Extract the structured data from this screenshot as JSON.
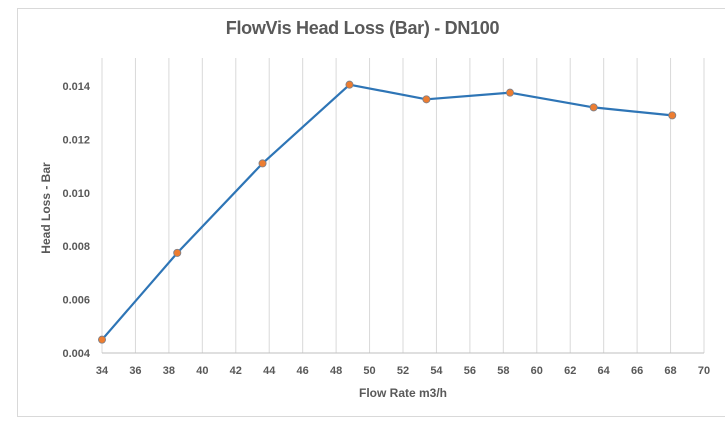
{
  "chart_data": {
    "type": "line",
    "title": "FlowVis Head Loss  (Bar) - DN100",
    "xlabel": "Flow Rate  m3/h",
    "ylabel": "Head Loss - Bar",
    "xlim": [
      34,
      70
    ],
    "ylim": [
      0.004,
      0.0151
    ],
    "x_ticks": [
      "34",
      "36",
      "38",
      "40",
      "42",
      "44",
      "46",
      "48",
      "50",
      "52",
      "54",
      "56",
      "58",
      "60",
      "62",
      "64",
      "66",
      "68",
      "70"
    ],
    "y_ticks": [
      "0.004",
      "0.006",
      "0.008",
      "0.010",
      "0.012",
      "0.014"
    ],
    "grid": {
      "vertical": true,
      "horizontal": false
    },
    "legend": null,
    "series": [
      {
        "name": "Head Loss",
        "color": "#2E75B6",
        "marker_color": "#ED7D31",
        "x": [
          34.0,
          38.5,
          43.6,
          48.8,
          53.4,
          58.4,
          63.4,
          68.1
        ],
        "y": [
          0.0045,
          0.00775,
          0.0111,
          0.01405,
          0.0135,
          0.01375,
          0.0132,
          0.0129
        ]
      }
    ]
  },
  "colors": {
    "line": "#2E75B6",
    "marker": "#ED7D31",
    "grid": "#d9d9d9",
    "text": "#595959"
  }
}
